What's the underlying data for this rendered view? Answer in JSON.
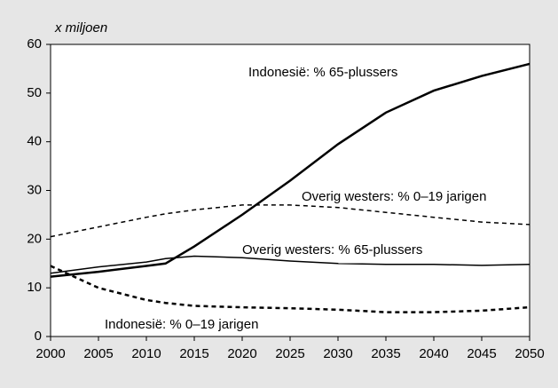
{
  "chart_data": {
    "type": "line",
    "y_label": "x miljoen",
    "x": [
      2000,
      2005,
      2010,
      2012,
      2015,
      2020,
      2025,
      2030,
      2035,
      2040,
      2045,
      2050
    ],
    "series": [
      {
        "name": "Indonesië: % 65-plussers",
        "color": "#000000",
        "line_style": "solid",
        "values": [
          12.3,
          13.3,
          14.5,
          15.0,
          18.5,
          25,
          32,
          39.5,
          46,
          50.5,
          53.5,
          56
        ]
      },
      {
        "name": "Overig westers: % 0–19 jarigen",
        "color": "#000000",
        "line_style": "dashed",
        "values": [
          20.5,
          22.5,
          24.5,
          25.2,
          26,
          27,
          27,
          26.5,
          25.5,
          24.5,
          23.5,
          23
        ]
      },
      {
        "name": "Overig westers: % 65-plussers",
        "color": "#000000",
        "line_style": "solid",
        "values": [
          13,
          14.3,
          15.3,
          16.0,
          16.5,
          16.2,
          15.5,
          15,
          14.8,
          14.8,
          14.6,
          14.8
        ]
      },
      {
        "name": "Indonesië: % 0–19 jarigen",
        "color": "#000000",
        "line_style": "dashed",
        "values": [
          14.5,
          10,
          7.5,
          6.9,
          6.3,
          6,
          5.8,
          5.5,
          5,
          5,
          5.3,
          6
        ]
      }
    ],
    "xlim": [
      2000,
      2050
    ],
    "xticks": [
      2000,
      2005,
      2010,
      2015,
      2020,
      2025,
      2030,
      2035,
      2040,
      2045,
      2050
    ],
    "ylim": [
      0,
      60
    ],
    "yticks": [
      0,
      10,
      20,
      30,
      40,
      50,
      60
    ],
    "grid": false
  }
}
